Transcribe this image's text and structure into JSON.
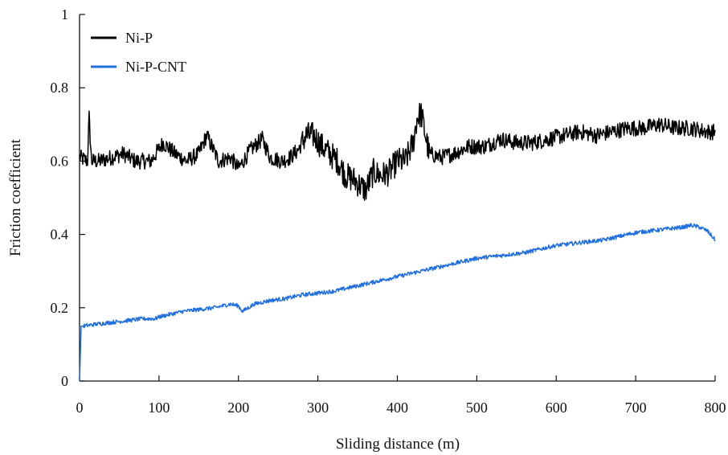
{
  "chart_data": {
    "type": "line",
    "title": "",
    "xlabel": "Sliding distance (m)",
    "ylabel": "Friction coefficient",
    "xlim": [
      0,
      800
    ],
    "ylim": [
      0,
      1
    ],
    "x_ticks": [
      "0",
      "100",
      "200",
      "300",
      "400",
      "500",
      "600",
      "700",
      "800"
    ],
    "y_ticks": [
      "0",
      "0.2",
      "0.4",
      "0.6",
      "0.8",
      "1"
    ],
    "grid": false,
    "legend_position": "top-left",
    "series": [
      {
        "name": "Ni-P",
        "color": "#000000",
        "x": [
          0,
          10,
          12,
          15,
          25,
          40,
          55,
          70,
          90,
          105,
          120,
          135,
          150,
          160,
          175,
          190,
          200,
          215,
          230,
          240,
          255,
          265,
          275,
          285,
          295,
          305,
          315,
          325,
          335,
          345,
          355,
          360,
          370,
          380,
          390,
          400,
          410,
          420,
          425,
          430,
          440,
          455,
          470,
          490,
          510,
          530,
          550,
          570,
          590,
          610,
          630,
          650,
          670,
          690,
          710,
          730,
          750,
          770,
          790,
          800
        ],
        "y": [
          0.61,
          0.6,
          0.72,
          0.6,
          0.6,
          0.61,
          0.62,
          0.6,
          0.6,
          0.65,
          0.62,
          0.6,
          0.62,
          0.67,
          0.6,
          0.61,
          0.58,
          0.63,
          0.66,
          0.61,
          0.6,
          0.61,
          0.63,
          0.67,
          0.67,
          0.64,
          0.62,
          0.6,
          0.56,
          0.55,
          0.53,
          0.52,
          0.57,
          0.56,
          0.57,
          0.6,
          0.6,
          0.65,
          0.72,
          0.73,
          0.62,
          0.61,
          0.62,
          0.64,
          0.64,
          0.66,
          0.65,
          0.65,
          0.66,
          0.67,
          0.68,
          0.67,
          0.68,
          0.69,
          0.69,
          0.7,
          0.69,
          0.69,
          0.68,
          0.68
        ]
      },
      {
        "name": "Ni-P-CNT",
        "color": "#1f6fe0",
        "x": [
          0,
          2,
          5,
          20,
          40,
          60,
          80,
          95,
          100,
          110,
          130,
          150,
          170,
          190,
          200,
          205,
          220,
          240,
          260,
          280,
          300,
          320,
          340,
          360,
          380,
          400,
          420,
          440,
          460,
          480,
          500,
          520,
          540,
          560,
          580,
          600,
          620,
          640,
          660,
          680,
          700,
          720,
          740,
          760,
          770,
          780,
          790,
          800
        ],
        "y": [
          0.0,
          0.15,
          0.15,
          0.155,
          0.16,
          0.165,
          0.17,
          0.17,
          0.175,
          0.18,
          0.19,
          0.195,
          0.2,
          0.21,
          0.205,
          0.19,
          0.21,
          0.22,
          0.225,
          0.235,
          0.24,
          0.245,
          0.255,
          0.265,
          0.275,
          0.285,
          0.295,
          0.305,
          0.315,
          0.325,
          0.335,
          0.34,
          0.345,
          0.35,
          0.36,
          0.37,
          0.375,
          0.38,
          0.385,
          0.395,
          0.405,
          0.41,
          0.415,
          0.42,
          0.425,
          0.42,
          0.41,
          0.385
        ]
      }
    ]
  }
}
